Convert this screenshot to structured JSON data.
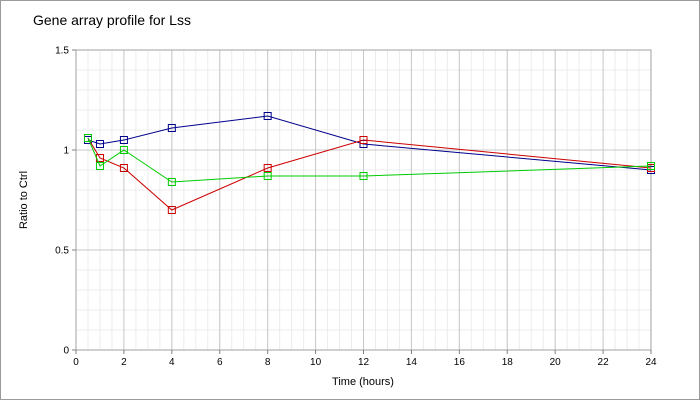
{
  "chart_data": {
    "type": "line",
    "title": "Gene array profile for Lss",
    "xlabel": "Time (hours)",
    "ylabel": "Ratio to Ctrl",
    "xlim": [
      0,
      24
    ],
    "ylim": [
      0,
      1.5
    ],
    "x_ticks": [
      0,
      2,
      4,
      6,
      8,
      10,
      12,
      14,
      16,
      18,
      20,
      22,
      24
    ],
    "y_ticks": [
      0,
      0.5,
      1,
      1.5
    ],
    "y_tick_labels": [
      "0",
      "0.5",
      "1",
      "1.5"
    ],
    "grid": true,
    "legend": "none",
    "marker": "square",
    "series": [
      {
        "color": "#00008b",
        "x": [
          0.5,
          1,
          2,
          4,
          8,
          12,
          24
        ],
        "y": [
          1.05,
          1.03,
          1.05,
          1.11,
          1.17,
          1.03,
          0.9
        ]
      },
      {
        "color": "#cc0000",
        "x": [
          0.5,
          1,
          2,
          4,
          8,
          12,
          24
        ],
        "y": [
          1.06,
          0.96,
          0.91,
          0.7,
          0.91,
          1.05,
          0.91
        ]
      },
      {
        "color": "#00cc00",
        "x": [
          0.5,
          1,
          2,
          4,
          8,
          12,
          24
        ],
        "y": [
          1.06,
          0.92,
          1.0,
          0.84,
          0.87,
          0.87,
          0.92
        ]
      }
    ]
  }
}
